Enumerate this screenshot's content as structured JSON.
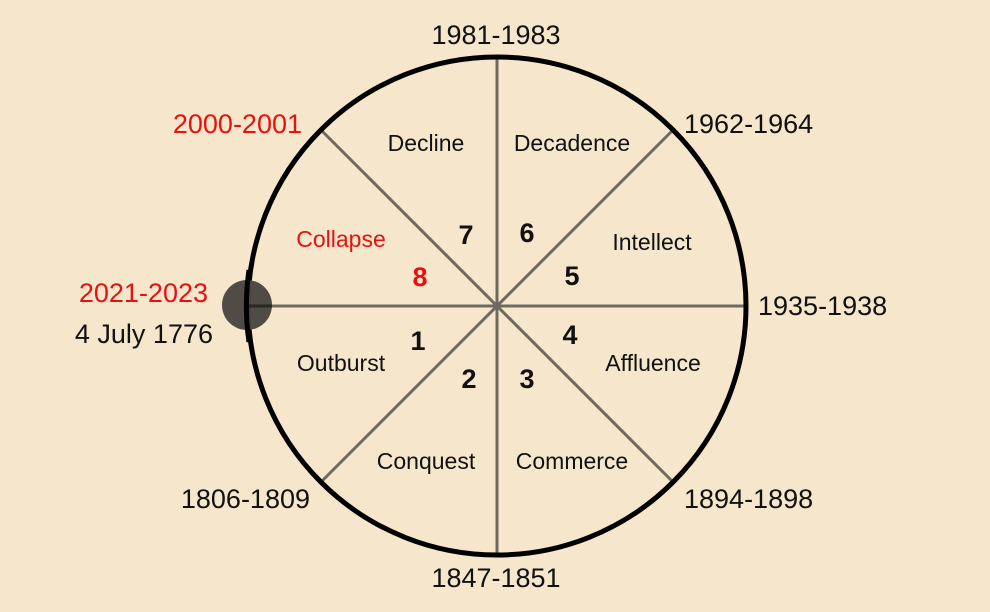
{
  "colors": {
    "background": "#f6e6cb",
    "highlight": "#e8110f",
    "text": "#111111",
    "spoke": "#6f6a60",
    "circle": "#000000",
    "marker": "#4a4640"
  },
  "dates": {
    "top": "1981-1983",
    "top_right": "1962-1964",
    "right": "1935-1938",
    "bottom_right": "1894-1898",
    "bottom": "1847-1851",
    "bottom_left": "1806-1809",
    "left_highlight": "2021-2023",
    "left": "4 July 1776",
    "top_left_highlight": "2000-2001"
  },
  "segments": [
    {
      "number": "1",
      "label": "Outburst"
    },
    {
      "number": "2",
      "label": "Conquest"
    },
    {
      "number": "3",
      "label": "Commerce"
    },
    {
      "number": "4",
      "label": "Affluence"
    },
    {
      "number": "5",
      "label": "Intellect"
    },
    {
      "number": "6",
      "label": "Decadence"
    },
    {
      "number": "7",
      "label": "Decline"
    },
    {
      "number": "8",
      "label": "Collapse",
      "highlight": true
    }
  ],
  "marker": "current-position-dot"
}
